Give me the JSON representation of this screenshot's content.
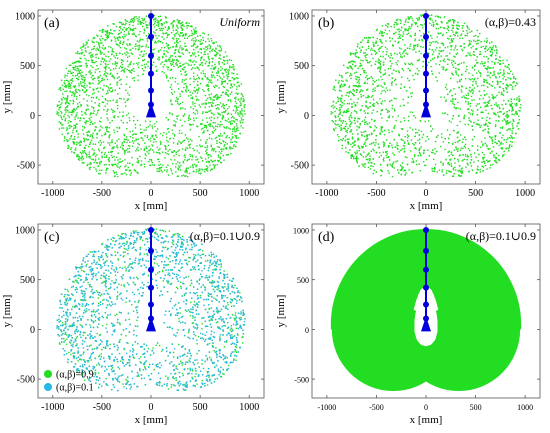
{
  "chart_data": [
    {
      "type": "scatter",
      "panel_label": "(a)",
      "annotation": "Uniform",
      "xlabel": "x [mm]",
      "ylabel": "y [mm]",
      "xlim": [
        -1150,
        1150
      ],
      "ylim": [
        -690,
        1060
      ],
      "xticks": [
        -1000,
        -500,
        0,
        500,
        1000
      ],
      "xtick_labels": [
        "-1000",
        "-500",
        "0",
        "500",
        "1000"
      ],
      "yticks": [
        -500,
        0,
        500,
        1000
      ],
      "ytick_labels": [
        "-500",
        "0",
        "500",
        "1000"
      ],
      "fill_style": "dots",
      "hole": "large",
      "series": [
        {
          "color": "#22dd22",
          "density": 1.0
        }
      ],
      "arm_joints_y": [
        0,
        110,
        250,
        420,
        600,
        790,
        1000
      ],
      "arm_color": "#0000dd"
    },
    {
      "type": "scatter",
      "panel_label": "(b)",
      "annotation": "(α,β)=0.43",
      "xlabel": "x [mm]",
      "ylabel": "y [mm]",
      "xlim": [
        -1150,
        1150
      ],
      "ylim": [
        -690,
        1060
      ],
      "xticks": [
        -1000,
        -500,
        0,
        500,
        1000
      ],
      "xtick_labels": [
        "-1000",
        "-500",
        "0",
        "500",
        "1000"
      ],
      "yticks": [
        -500,
        0,
        500,
        1000
      ],
      "ytick_labels": [
        "-500",
        "0",
        "500",
        "1000"
      ],
      "fill_style": "dots",
      "hole": "medium",
      "series": [
        {
          "color": "#22dd22",
          "density": 1.0
        }
      ],
      "arm_joints_y": [
        0,
        110,
        250,
        420,
        600,
        790,
        1000
      ],
      "arm_color": "#0000dd"
    },
    {
      "type": "scatter",
      "panel_label": "(c)",
      "annotation": "(α,β)=0.1∪0.9",
      "xlabel": "x [mm]",
      "ylabel": "y [mm]",
      "xlim": [
        -1150,
        1150
      ],
      "ylim": [
        -690,
        1060
      ],
      "xticks": [
        -1000,
        -500,
        0,
        500,
        1000
      ],
      "xtick_labels": [
        "-1000",
        "-500",
        "0",
        "500",
        "1000"
      ],
      "yticks": [
        -500,
        0,
        500,
        1000
      ],
      "ytick_labels": [
        "-500",
        "0",
        "500",
        "1000"
      ],
      "fill_style": "dots",
      "hole": "small",
      "series": [
        {
          "name": "(α,β)=0.9",
          "color": "#22dd22",
          "density": 0.7
        },
        {
          "name": "(α,β)=0.1",
          "color": "#29b6e8",
          "density": 0.6
        }
      ],
      "legend_position": "bottom-left",
      "arm_joints_y": [
        0,
        110,
        250,
        420,
        600,
        790,
        1000
      ],
      "arm_color": "#0000dd"
    },
    {
      "type": "area",
      "panel_label": "(d)",
      "annotation": "(α,β)=0.1∪0.9",
      "xlabel": "x [mm]",
      "ylabel": "y [mm]",
      "xlim": [
        -1150,
        1150
      ],
      "ylim": [
        -690,
        1060
      ],
      "xticks": [
        -1000,
        -500,
        0,
        500,
        1000
      ],
      "xtick_labels": [
        "-1000",
        "-500",
        "0",
        "500",
        "1000"
      ],
      "yticks": [
        -500,
        0,
        500,
        1000
      ],
      "ytick_labels": [
        "-500",
        "0",
        "500",
        "1000"
      ],
      "fill_style": "solid",
      "hole": "small",
      "series": [
        {
          "color": "#22dd22",
          "density": 1.0
        }
      ],
      "arm_joints_y": [
        0,
        110,
        250,
        420,
        600,
        790,
        1000
      ],
      "arm_color": "#0000dd"
    }
  ]
}
